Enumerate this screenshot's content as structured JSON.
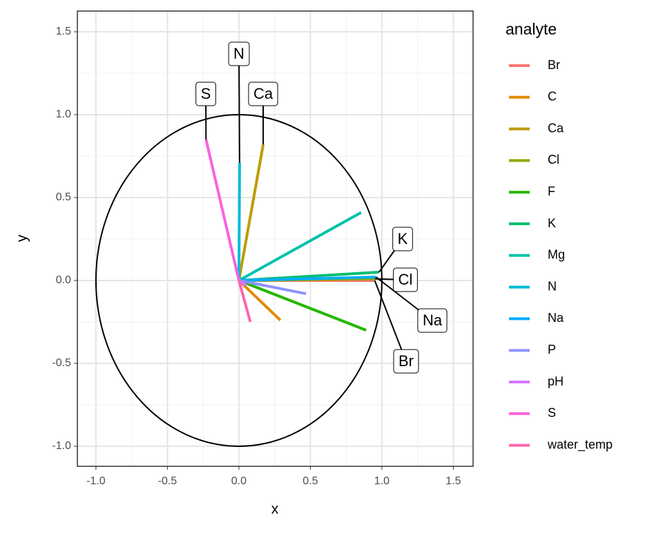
{
  "chart_data": {
    "type": "biplot",
    "x_label": "x",
    "y_label": "y",
    "legend_title": "analyte",
    "xlim": [
      -1.13,
      1.638
    ],
    "ylim": [
      -1.121,
      1.625
    ],
    "xticks": [
      {
        "value": -1,
        "label": "-1.0"
      },
      -0.5,
      {
        "value": 0,
        "label": "0.0"
      },
      0.5,
      {
        "value": 1,
        "label": "1.0"
      },
      1.5
    ],
    "yticks": [
      {
        "value": -1,
        "label": "-1.0"
      },
      -0.5,
      {
        "value": 0,
        "label": "0.0"
      },
      0.5,
      {
        "value": 1,
        "label": "1.0"
      },
      1.5
    ],
    "grid": true,
    "legend_position": "right",
    "series": [
      {
        "name": "Br",
        "color": "#F8766D",
        "x": [
          0.95
        ],
        "values": [
          0.0
        ],
        "labeled": true
      },
      {
        "name": "C",
        "color": "#E18A00",
        "x": [
          0.29
        ],
        "values": [
          -0.24
        ],
        "labeled": false
      },
      {
        "name": "Ca",
        "color": "#BE9C00",
        "x": [
          0.17
        ],
        "values": [
          0.82
        ],
        "labeled": true
      },
      {
        "name": "Cl",
        "color": "#8CAB00",
        "x": [
          0.95
        ],
        "values": [
          0.01
        ],
        "labeled": true
      },
      {
        "name": "F",
        "color": "#24B700",
        "x": [
          0.89
        ],
        "values": [
          -0.3
        ],
        "labeled": false
      },
      {
        "name": "K",
        "color": "#00BE70",
        "x": [
          0.98
        ],
        "values": [
          0.05
        ],
        "labeled": true
      },
      {
        "name": "Mg",
        "color": "#00C1AB",
        "x": [
          0.855
        ],
        "values": [
          0.41
        ],
        "labeled": false
      },
      {
        "name": "N",
        "color": "#00BBDA",
        "x": [
          0.005
        ],
        "values": [
          0.71
        ],
        "labeled": true
      },
      {
        "name": "Na",
        "color": "#00ACFC",
        "x": [
          0.96
        ],
        "values": [
          0.02
        ],
        "labeled": true
      },
      {
        "name": "P",
        "color": "#8B93FF",
        "x": [
          0.47
        ],
        "values": [
          -0.08
        ],
        "labeled": false
      },
      {
        "name": "pH",
        "color": "#D575FE",
        "x": [
          0.05
        ],
        "values": [
          -0.03
        ],
        "labeled": false
      },
      {
        "name": "S",
        "color": "#F962DD",
        "x": [
          -0.23
        ],
        "values": [
          0.85
        ],
        "labeled": true
      },
      {
        "name": "water_temp",
        "color": "#FF65AC",
        "x": [
          0.08
        ],
        "values": [
          -0.25
        ],
        "labeled": false
      }
    ]
  }
}
